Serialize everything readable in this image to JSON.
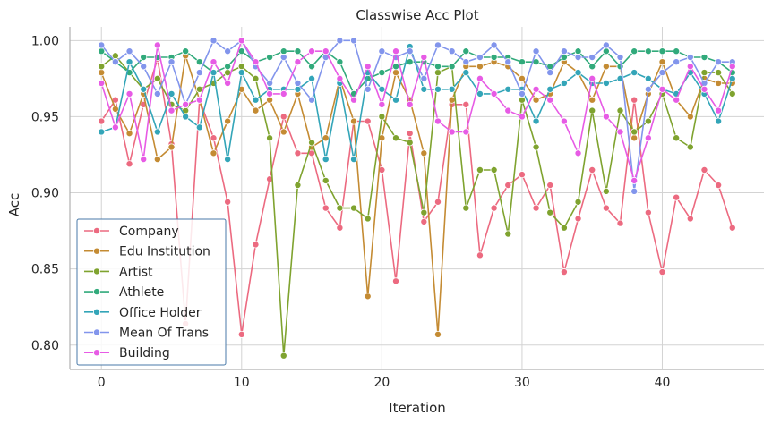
{
  "chart_data": {
    "type": "line",
    "title": "Classwise Acc Plot",
    "xlabel": "Iteration",
    "ylabel": "Acc",
    "xlim": [
      -2.25,
      47.25
    ],
    "ylim": [
      0.784,
      1.009
    ],
    "xticks": [
      0,
      10,
      20,
      30,
      40
    ],
    "yticks": [
      0.8,
      0.85,
      0.9,
      0.95,
      1.0
    ],
    "xtick_labels": [
      "0",
      "10",
      "20",
      "30",
      "40"
    ],
    "ytick_labels": [
      "0.80",
      "0.85",
      "0.90",
      "0.95",
      "1.00"
    ],
    "grid": true,
    "legend_position": "bottom-left",
    "x": [
      0,
      1,
      2,
      3,
      4,
      5,
      6,
      7,
      8,
      9,
      10,
      11,
      12,
      13,
      14,
      15,
      16,
      17,
      18,
      19,
      20,
      21,
      22,
      23,
      24,
      25,
      26,
      27,
      28,
      29,
      30,
      31,
      32,
      33,
      34,
      35,
      36,
      37,
      38,
      39,
      40,
      41,
      42,
      43,
      44,
      45
    ],
    "series": [
      {
        "name": "Company",
        "color": "#ec6a80",
        "values": [
          0.947,
          0.961,
          0.919,
          0.958,
          0.988,
          0.932,
          0.814,
          0.961,
          0.936,
          0.894,
          0.807,
          0.866,
          0.909,
          0.95,
          0.926,
          0.926,
          0.89,
          0.877,
          0.947,
          0.947,
          0.915,
          0.842,
          0.939,
          0.881,
          0.894,
          0.958,
          0.958,
          0.859,
          0.89,
          0.905,
          0.912,
          0.89,
          0.905,
          0.848,
          0.883,
          0.915,
          0.89,
          0.88,
          0.961,
          0.887,
          0.848,
          0.897,
          0.883,
          0.915,
          0.905,
          0.877
        ]
      },
      {
        "name": "Edu Institution",
        "color": "#c48b33",
        "values": [
          0.979,
          0.955,
          0.939,
          0.965,
          0.922,
          0.93,
          0.99,
          0.961,
          0.926,
          0.947,
          0.968,
          0.954,
          0.961,
          0.94,
          0.965,
          0.93,
          0.936,
          0.975,
          0.947,
          0.832,
          0.936,
          0.979,
          0.961,
          0.926,
          0.807,
          0.961,
          0.983,
          0.983,
          0.986,
          0.983,
          0.975,
          0.961,
          0.965,
          0.986,
          0.979,
          0.961,
          0.983,
          0.983,
          0.936,
          0.965,
          0.986,
          0.961,
          0.95,
          0.975,
          0.972,
          0.972
        ]
      },
      {
        "name": "Artist",
        "color": "#7fa32f",
        "values": [
          0.983,
          0.99,
          0.979,
          0.968,
          0.975,
          0.958,
          0.954,
          0.968,
          0.972,
          0.979,
          0.983,
          0.975,
          0.936,
          0.793,
          0.905,
          0.933,
          0.908,
          0.89,
          0.89,
          0.883,
          0.95,
          0.936,
          0.933,
          0.887,
          0.979,
          0.983,
          0.89,
          0.915,
          0.915,
          0.873,
          0.961,
          0.93,
          0.887,
          0.877,
          0.894,
          0.954,
          0.901,
          0.954,
          0.94,
          0.947,
          0.965,
          0.936,
          0.93,
          0.979,
          0.979,
          0.965
        ]
      },
      {
        "name": "Athlete",
        "color": "#31aa7b",
        "values": [
          0.993,
          0.986,
          0.979,
          0.989,
          0.989,
          0.989,
          0.993,
          0.986,
          0.979,
          0.983,
          0.993,
          0.986,
          0.989,
          0.993,
          0.993,
          0.983,
          0.993,
          0.986,
          0.965,
          0.975,
          0.979,
          0.983,
          0.986,
          0.986,
          0.983,
          0.983,
          0.993,
          0.989,
          0.989,
          0.989,
          0.986,
          0.986,
          0.983,
          0.989,
          0.993,
          0.983,
          0.993,
          0.983,
          0.993,
          0.993,
          0.993,
          0.993,
          0.989,
          0.989,
          0.986,
          0.979
        ]
      },
      {
        "name": "Office Holder",
        "color": "#33a5b8",
        "values": [
          0.94,
          0.943,
          0.986,
          0.968,
          0.94,
          0.965,
          0.95,
          0.943,
          0.979,
          0.922,
          0.979,
          0.961,
          0.968,
          0.968,
          0.968,
          0.975,
          0.922,
          0.972,
          0.922,
          0.979,
          0.968,
          0.961,
          0.996,
          0.968,
          0.968,
          0.968,
          0.979,
          0.965,
          0.965,
          0.968,
          0.968,
          0.947,
          0.968,
          0.972,
          0.979,
          0.972,
          0.972,
          0.975,
          0.979,
          0.975,
          0.968,
          0.965,
          0.979,
          0.965,
          0.947,
          0.975
        ]
      },
      {
        "name": "Mean Of Trans",
        "color": "#8295ec",
        "values": [
          0.997,
          0.986,
          0.993,
          0.983,
          0.965,
          0.986,
          0.958,
          0.979,
          1.0,
          0.993,
          1.0,
          0.983,
          0.972,
          0.989,
          0.972,
          0.961,
          0.989,
          1.0,
          1.0,
          0.968,
          0.993,
          0.989,
          0.993,
          0.975,
          0.997,
          0.993,
          0.986,
          0.989,
          0.997,
          0.986,
          0.965,
          0.993,
          0.979,
          0.993,
          0.989,
          0.989,
          0.997,
          0.989,
          0.901,
          0.968,
          0.979,
          0.986,
          0.989,
          0.972,
          0.986,
          0.986
        ]
      },
      {
        "name": "Building",
        "color": "#e75be5",
        "values": [
          0.972,
          0.943,
          0.965,
          0.922,
          0.997,
          0.954,
          0.958,
          0.961,
          0.986,
          0.972,
          1.0,
          0.986,
          0.965,
          0.965,
          0.986,
          0.993,
          0.993,
          0.975,
          0.961,
          0.983,
          0.958,
          0.993,
          0.958,
          0.989,
          0.947,
          0.94,
          0.94,
          0.975,
          0.965,
          0.954,
          0.95,
          0.968,
          0.961,
          0.947,
          0.926,
          0.975,
          0.95,
          0.94,
          0.908,
          0.936,
          0.968,
          0.961,
          0.983,
          0.968,
          0.954,
          0.983
        ]
      }
    ]
  }
}
